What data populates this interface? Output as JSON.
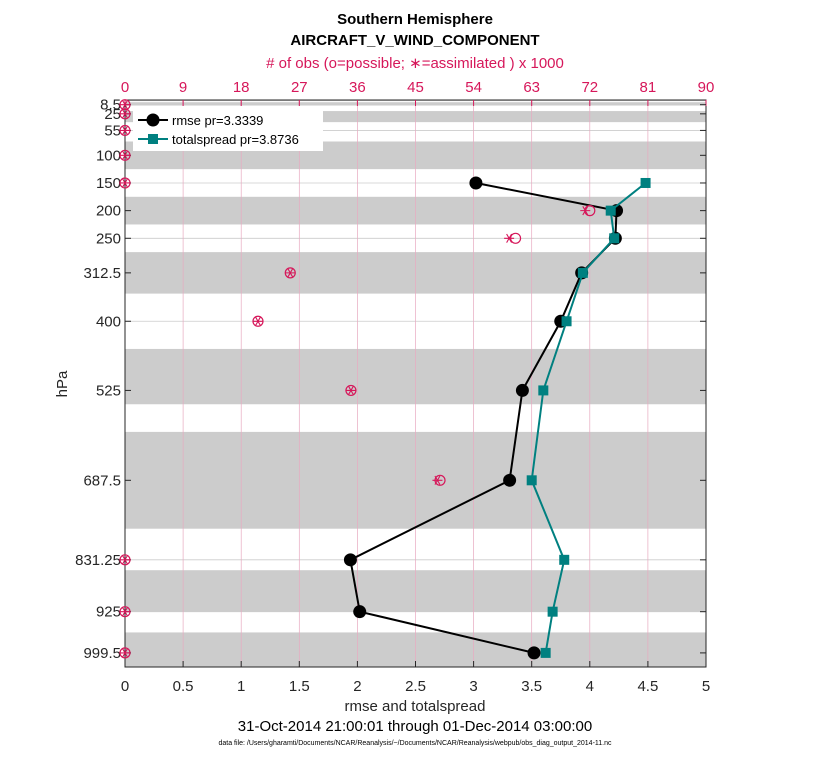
{
  "chart_data": {
    "type": "line",
    "title": "Southern Hemisphere",
    "subtitle": "AIRCRAFT_V_WIND_COMPONENT",
    "top_axis_label": "# of obs (o=possible; ∗=assimilated ) x 1000",
    "xlabel": "rmse and totalspread",
    "ylabel": "hPa",
    "date_range": "31-Oct-2014 21:00:01 through 01-Dec-2014 03:00:00",
    "footnote": "data file: /Users/gharamti/Documents/NCAR/Reanalysis/~/Documents/NCAR/Reanalysis/webpub/obs_diag_output_2014-11.nc",
    "xlim": [
      0,
      5
    ],
    "x_ticks": [
      "0",
      "0.5",
      "1",
      "1.5",
      "2",
      "2.5",
      "3",
      "3.5",
      "4",
      "4.5",
      "5"
    ],
    "top_xlim": [
      0,
      90
    ],
    "top_ticks": [
      "0",
      "9",
      "18",
      "27",
      "36",
      "45",
      "54",
      "63",
      "72",
      "81",
      "90"
    ],
    "ylim": [
      1025,
      0
    ],
    "y_ticks": [
      8.5,
      25,
      55,
      100,
      150,
      200,
      250,
      312.5,
      400,
      525,
      687.5,
      831.25,
      925,
      999.5
    ],
    "y_tick_labels": [
      "8.5",
      "25",
      "55",
      "100",
      "150",
      "200",
      "250",
      "312.5",
      "400",
      "525",
      "687.5",
      "831.25",
      "925",
      "999.5"
    ],
    "bands": [
      [
        0,
        2
      ],
      [
        4,
        10
      ],
      [
        20,
        40
      ],
      [
        75,
        125
      ],
      [
        175,
        225
      ],
      [
        275,
        350
      ],
      [
        450,
        550
      ],
      [
        600,
        775
      ],
      [
        850,
        925
      ],
      [
        962.5,
        1025
      ]
    ],
    "series": [
      {
        "name": "rmse",
        "legend": "rmse pr=3.3339",
        "color": "#000000",
        "marker": "circle",
        "points": [
          [
            3.02,
            150
          ],
          [
            4.23,
            200
          ],
          [
            4.22,
            250
          ],
          [
            3.93,
            312.5
          ],
          [
            3.75,
            400
          ],
          [
            3.42,
            525
          ],
          [
            3.31,
            687.5
          ],
          [
            1.94,
            831.25
          ],
          [
            2.02,
            925
          ],
          [
            3.52,
            999.5
          ]
        ]
      },
      {
        "name": "totalspread",
        "legend": "totalspread pr=3.8736",
        "color": "#008080",
        "marker": "square",
        "points": [
          [
            4.48,
            150
          ],
          [
            4.18,
            200
          ],
          [
            4.21,
            250
          ],
          [
            3.94,
            312.5
          ],
          [
            3.8,
            400
          ],
          [
            3.6,
            525
          ],
          [
            3.5,
            687.5
          ],
          [
            3.78,
            831.25
          ],
          [
            3.68,
            925
          ],
          [
            3.62,
            999.5
          ]
        ]
      }
    ],
    "obs_possible": [
      [
        0,
        8.5
      ],
      [
        0,
        25
      ],
      [
        0,
        55
      ],
      [
        0,
        100
      ],
      [
        0,
        150
      ],
      [
        72,
        200
      ],
      [
        60.5,
        250
      ],
      [
        25.6,
        312.5
      ],
      [
        20.6,
        400
      ],
      [
        35,
        525
      ],
      [
        48.8,
        687.5
      ],
      [
        0,
        831.25
      ],
      [
        0,
        925
      ],
      [
        0,
        999.5
      ]
    ],
    "obs_assimilated": [
      [
        0,
        8.5
      ],
      [
        0,
        25
      ],
      [
        0,
        55
      ],
      [
        0,
        100
      ],
      [
        0,
        150
      ],
      [
        71.3,
        200
      ],
      [
        59.5,
        250
      ],
      [
        25.6,
        312.5
      ],
      [
        20.6,
        400
      ],
      [
        35,
        525
      ],
      [
        48.4,
        687.5
      ],
      [
        0,
        831.25
      ],
      [
        0,
        925
      ],
      [
        0,
        999.5
      ]
    ],
    "colors": {
      "obs": "#d6175a",
      "band": "#cccccc",
      "grid": "#cccccc",
      "obs_grid": "#e8a9c0"
    }
  }
}
